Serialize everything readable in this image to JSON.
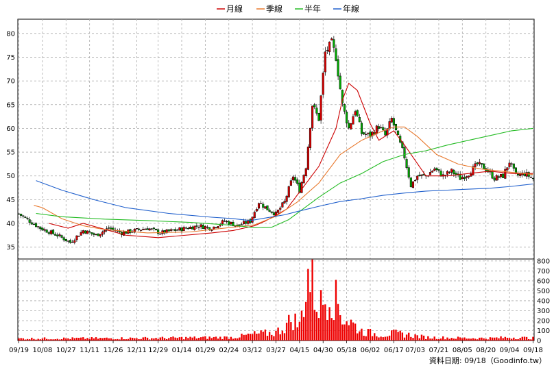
{
  "chart_data": {
    "type": "candlestick",
    "legend": [
      {
        "label": "月線",
        "color": "#cc0000"
      },
      {
        "label": "季線",
        "color": "#e8782c"
      },
      {
        "label": "半年",
        "color": "#22bb22"
      },
      {
        "label": "年線",
        "color": "#1f5fcc"
      }
    ],
    "x_ticks": [
      "09/19",
      "10/08",
      "10/27",
      "11/11",
      "11/26",
      "12/11",
      "12/29",
      "01/14",
      "01/29",
      "02/24",
      "03/12",
      "03/27",
      "04/15",
      "04/30",
      "05/18",
      "06/02",
      "06/17",
      "07/03",
      "07/21",
      "08/05",
      "08/20",
      "09/04",
      "09/18"
    ],
    "price_axis": {
      "ticks": [
        35,
        40,
        45,
        50,
        55,
        60,
        65,
        70,
        75,
        80
      ],
      "range": [
        32.5,
        83
      ]
    },
    "volume_axis": {
      "ticks": [
        0,
        100,
        200,
        300,
        400,
        500,
        600,
        700,
        800
      ],
      "range": [
        0,
        820
      ]
    },
    "price_anchors": [
      {
        "t": 0,
        "p": 42
      },
      {
        "t": 10,
        "p": 39
      },
      {
        "t": 18,
        "p": 37.5
      },
      {
        "t": 24,
        "p": 36
      },
      {
        "t": 30,
        "p": 38.5
      },
      {
        "t": 36,
        "p": 37.5
      },
      {
        "t": 42,
        "p": 39
      },
      {
        "t": 48,
        "p": 38
      },
      {
        "t": 54,
        "p": 38.5
      },
      {
        "t": 60,
        "p": 39
      },
      {
        "t": 66,
        "p": 38
      },
      {
        "t": 72,
        "p": 38.5
      },
      {
        "t": 78,
        "p": 39
      },
      {
        "t": 84,
        "p": 39.5
      },
      {
        "t": 90,
        "p": 39
      },
      {
        "t": 96,
        "p": 40.5
      },
      {
        "t": 102,
        "p": 39.5
      },
      {
        "t": 108,
        "p": 40.5
      },
      {
        "t": 112,
        "p": 44.5
      },
      {
        "t": 116,
        "p": 43
      },
      {
        "t": 120,
        "p": 42
      },
      {
        "t": 124,
        "p": 44.5
      },
      {
        "t": 128,
        "p": 50
      },
      {
        "t": 131,
        "p": 47
      },
      {
        "t": 134,
        "p": 52
      },
      {
        "t": 137,
        "p": 65
      },
      {
        "t": 140,
        "p": 62
      },
      {
        "t": 143,
        "p": 76
      },
      {
        "t": 146,
        "p": 78
      },
      {
        "t": 148,
        "p": 75
      },
      {
        "t": 151,
        "p": 65
      },
      {
        "t": 154,
        "p": 60
      },
      {
        "t": 157,
        "p": 64
      },
      {
        "t": 160,
        "p": 59
      },
      {
        "t": 164,
        "p": 58.5
      },
      {
        "t": 168,
        "p": 60.5
      },
      {
        "t": 171,
        "p": 58.5
      },
      {
        "t": 174,
        "p": 62
      },
      {
        "t": 177,
        "p": 58
      },
      {
        "t": 180,
        "p": 54
      },
      {
        "t": 183,
        "p": 48
      },
      {
        "t": 186,
        "p": 50
      },
      {
        "t": 190,
        "p": 50
      },
      {
        "t": 194,
        "p": 51.5
      },
      {
        "t": 198,
        "p": 50
      },
      {
        "t": 202,
        "p": 51
      },
      {
        "t": 206,
        "p": 49.5
      },
      {
        "t": 210,
        "p": 50.5
      },
      {
        "t": 214,
        "p": 52.5
      },
      {
        "t": 218,
        "p": 51.5
      },
      {
        "t": 222,
        "p": 49.5
      },
      {
        "t": 226,
        "p": 50
      },
      {
        "t": 229,
        "p": 53
      },
      {
        "t": 232,
        "p": 50
      },
      {
        "t": 236,
        "p": 50.5
      },
      {
        "t": 240,
        "p": 49.5
      }
    ],
    "ma_month": [
      [
        14,
        40
      ],
      [
        23,
        39
      ],
      [
        30,
        40
      ],
      [
        50,
        37.5
      ],
      [
        65,
        37
      ],
      [
        90,
        38
      ],
      [
        100,
        38.5
      ],
      [
        110,
        39.5
      ],
      [
        115,
        40.5
      ],
      [
        125,
        43
      ],
      [
        140,
        52
      ],
      [
        148,
        60
      ],
      [
        151,
        66
      ],
      [
        154,
        69.5
      ],
      [
        158,
        68
      ],
      [
        164,
        61
      ],
      [
        168,
        57.5
      ],
      [
        175,
        59.5
      ],
      [
        180,
        56.5
      ],
      [
        190,
        50
      ],
      [
        200,
        50
      ],
      [
        210,
        50.5
      ],
      [
        220,
        51
      ],
      [
        230,
        50.5
      ],
      [
        240,
        50.5
      ]
    ],
    "ma_quarter": [
      [
        7,
        43.8
      ],
      [
        11,
        43.3
      ],
      [
        20,
        41
      ],
      [
        30,
        39.5
      ],
      [
        40,
        38.7
      ],
      [
        60,
        38
      ],
      [
        80,
        38.2
      ],
      [
        100,
        39.2
      ],
      [
        110,
        39.7
      ],
      [
        120,
        41.5
      ],
      [
        130,
        44.5
      ],
      [
        140,
        48.5
      ],
      [
        150,
        54.5
      ],
      [
        160,
        57.5
      ],
      [
        170,
        59.5
      ],
      [
        175,
        60.3
      ],
      [
        180,
        60.3
      ],
      [
        186,
        58.3
      ],
      [
        195,
        54.5
      ],
      [
        205,
        52.5
      ],
      [
        215,
        51.5
      ],
      [
        225,
        51
      ],
      [
        235,
        50.5
      ],
      [
        240,
        50.3
      ]
    ],
    "ma_half": [
      [
        8,
        42.1
      ],
      [
        20,
        41.4
      ],
      [
        40,
        40.9
      ],
      [
        60,
        40.6
      ],
      [
        80,
        40.2
      ],
      [
        100,
        39.6
      ],
      [
        110,
        39.1
      ],
      [
        118,
        39.2
      ],
      [
        126,
        40.8
      ],
      [
        134,
        43.5
      ],
      [
        140,
        45.5
      ],
      [
        150,
        48.5
      ],
      [
        160,
        50.5
      ],
      [
        170,
        53
      ],
      [
        180,
        54.5
      ],
      [
        190,
        55.3
      ],
      [
        200,
        56.5
      ],
      [
        210,
        57.5
      ],
      [
        220,
        58.5
      ],
      [
        230,
        59.5
      ],
      [
        240,
        60
      ]
    ],
    "ma_year": [
      [
        8,
        49
      ],
      [
        20,
        47
      ],
      [
        35,
        45
      ],
      [
        50,
        43.3
      ],
      [
        70,
        42.1
      ],
      [
        90,
        41.3
      ],
      [
        100,
        41
      ],
      [
        108,
        40.6
      ],
      [
        116,
        41.2
      ],
      [
        124,
        41.8
      ],
      [
        130,
        42.5
      ],
      [
        140,
        43.6
      ],
      [
        150,
        44.6
      ],
      [
        160,
        45.2
      ],
      [
        170,
        45.9
      ],
      [
        180,
        46.4
      ],
      [
        190,
        46.8
      ],
      [
        200,
        47
      ],
      [
        210,
        47.2
      ],
      [
        220,
        47.4
      ],
      [
        230,
        47.8
      ],
      [
        240,
        48.3
      ]
    ],
    "volume_anchors": [
      {
        "t": 0,
        "v": 25
      },
      {
        "t": 60,
        "v": 30
      },
      {
        "t": 100,
        "v": 40
      },
      {
        "t": 110,
        "v": 80
      },
      {
        "t": 120,
        "v": 100
      },
      {
        "t": 125,
        "v": 200
      },
      {
        "t": 128,
        "v": 280
      },
      {
        "t": 131,
        "v": 180
      },
      {
        "t": 133,
        "v": 500
      },
      {
        "t": 135,
        "v": 830
      },
      {
        "t": 137,
        "v": 700
      },
      {
        "t": 139,
        "v": 480
      },
      {
        "t": 141,
        "v": 450
      },
      {
        "t": 143,
        "v": 520
      },
      {
        "t": 145,
        "v": 640
      },
      {
        "t": 147,
        "v": 540
      },
      {
        "t": 149,
        "v": 450
      },
      {
        "t": 151,
        "v": 300
      },
      {
        "t": 154,
        "v": 250
      },
      {
        "t": 157,
        "v": 180
      },
      {
        "t": 160,
        "v": 120
      },
      {
        "t": 165,
        "v": 90
      },
      {
        "t": 170,
        "v": 70
      },
      {
        "t": 175,
        "v": 90
      },
      {
        "t": 180,
        "v": 80
      },
      {
        "t": 185,
        "v": 60
      },
      {
        "t": 190,
        "v": 40
      },
      {
        "t": 200,
        "v": 35
      },
      {
        "t": 210,
        "v": 30
      },
      {
        "t": 220,
        "v": 30
      },
      {
        "t": 230,
        "v": 40
      },
      {
        "t": 240,
        "v": 30
      }
    ],
    "footer_text": "資料日期: 09/18（Goodinfo.tw）"
  }
}
